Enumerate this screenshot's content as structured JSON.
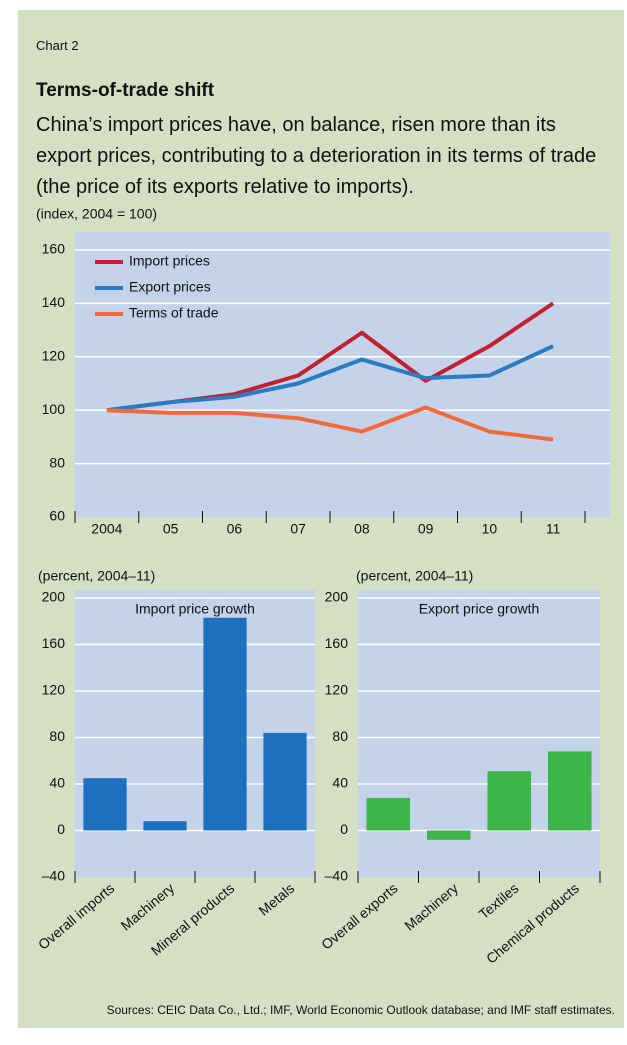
{
  "header": {
    "label": "Chart 2",
    "title": "Terms-of-trade shift",
    "subtitle": "China’s import prices have, on balance, risen more than its export prices, contributing to a deterioration in its terms of trade (the price of its exports relative to imports)."
  },
  "source": "Sources: CEIC Data Co., Ltd.; IMF, World Economic Outlook database; and IMF staff estimates.",
  "chart_data": [
    {
      "type": "line",
      "ylabel": "(index, 2004 = 100)",
      "categories": [
        "2004",
        "05",
        "06",
        "07",
        "08",
        "09",
        "10",
        "11"
      ],
      "series": [
        {
          "name": "Import prices",
          "color": "#c1202f",
          "values": [
            100,
            103,
            106,
            113,
            129,
            111,
            124,
            140
          ]
        },
        {
          "name": "Export prices",
          "color": "#2a7bc0",
          "values": [
            100,
            103,
            105,
            110,
            119,
            112,
            113,
            124
          ]
        },
        {
          "name": "Terms of trade",
          "color": "#f26a3b",
          "values": [
            100,
            99,
            99,
            97,
            92,
            101,
            92,
            89
          ]
        }
      ],
      "ylim": [
        60,
        160
      ],
      "yticks": [
        60,
        80,
        100,
        120,
        140,
        160
      ],
      "grid": true,
      "legend": "upper left"
    },
    {
      "type": "bar",
      "ylabel": "(percent, 2004–11)",
      "title": "Import price growth",
      "categories": [
        "Overall imports",
        "Machinery",
        "Mineral products",
        "Metals"
      ],
      "values": [
        45,
        8,
        183,
        84
      ],
      "color": "#1f6fbf",
      "ylim": [
        -40,
        200
      ],
      "yticks": [
        {
          "value": -40,
          "label": "–40"
        },
        0,
        40,
        80,
        120,
        160,
        200
      ],
      "grid": true
    },
    {
      "type": "bar",
      "ylabel": "(percent, 2004–11)",
      "title": "Export price growth",
      "categories": [
        "Overall exports",
        "Machinery",
        "Textiles",
        "Chemical products"
      ],
      "values": [
        28,
        -8,
        51,
        68
      ],
      "color": "#3cb54a",
      "ylim": [
        -40,
        200
      ],
      "yticks": [
        {
          "value": -40,
          "label": "–40"
        },
        0,
        40,
        80,
        120,
        160,
        200
      ],
      "grid": true
    }
  ]
}
